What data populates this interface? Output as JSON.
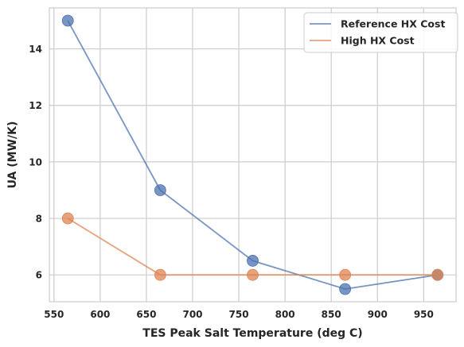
{
  "chart_data": {
    "type": "line",
    "xlabel": "TES Peak Salt Temperature (deg C)",
    "ylabel": "UA (MW/K)",
    "xlim": [
      545,
      985
    ],
    "ylim": [
      5.05,
      15.45
    ],
    "xticks": [
      550,
      600,
      650,
      700,
      750,
      800,
      850,
      900,
      950
    ],
    "yticks": [
      6,
      8,
      10,
      12,
      14
    ],
    "grid": true,
    "legend_position": "top-right",
    "series": [
      {
        "name": "Reference HX Cost",
        "color": "#4c72b0",
        "x": [
          565,
          665,
          765,
          865,
          965
        ],
        "y": [
          15.0,
          9.0,
          6.5,
          5.5,
          6.0
        ]
      },
      {
        "name": "High HX Cost",
        "color": "#dd8452",
        "x": [
          565,
          665,
          765,
          865,
          965
        ],
        "y": [
          8.0,
          6.0,
          6.0,
          6.0,
          6.0
        ]
      }
    ]
  }
}
